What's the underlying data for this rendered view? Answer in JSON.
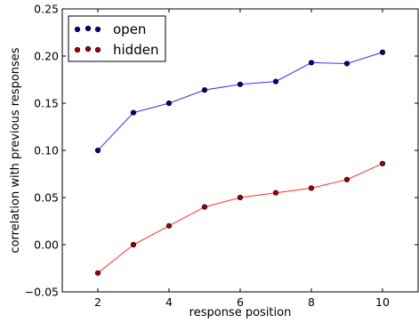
{
  "chart_data": {
    "type": "line",
    "title": "",
    "xlabel": "response position",
    "ylabel": "correlation with previous responses",
    "xlim": [
      1,
      11
    ],
    "ylim": [
      -0.05,
      0.25
    ],
    "x_ticks": [
      2,
      4,
      6,
      8,
      10
    ],
    "x_tick_labels": [
      "2",
      "4",
      "6",
      "8",
      "10"
    ],
    "y_ticks": [
      -0.05,
      0.0,
      0.05,
      0.1,
      0.15,
      0.2,
      0.25
    ],
    "y_tick_labels": [
      "−0.05",
      "0.00",
      "0.05",
      "0.10",
      "0.15",
      "0.20",
      "0.25"
    ],
    "grid": false,
    "legend_position": "top-left",
    "x": [
      2,
      3,
      4,
      5,
      6,
      7,
      8,
      9,
      10
    ],
    "series": [
      {
        "name": "open",
        "values": [
          0.1,
          0.14,
          0.15,
          0.164,
          0.17,
          0.173,
          0.193,
          0.192,
          0.204
        ],
        "line_color": "#3333ff",
        "marker_color": "#000080"
      },
      {
        "name": "hidden",
        "values": [
          -0.03,
          0.0,
          0.02,
          0.04,
          0.05,
          0.055,
          0.06,
          0.069,
          0.086
        ],
        "line_color": "#ff3030",
        "marker_color": "#a00000"
      }
    ]
  }
}
